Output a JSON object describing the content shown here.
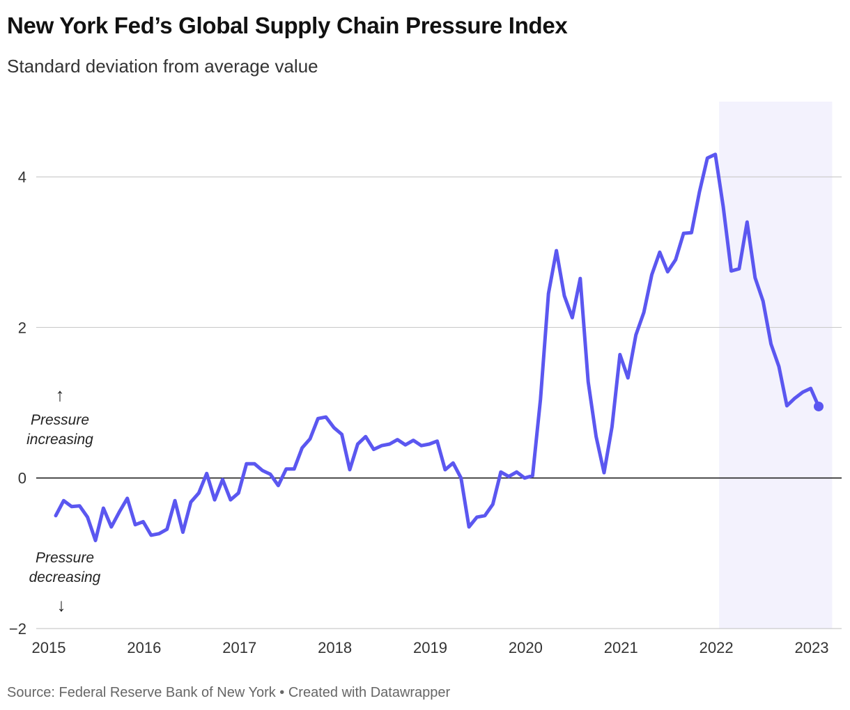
{
  "header": {
    "title": "New York Fed’s Global Supply Chain Pressure Index",
    "subtitle": "Standard deviation from average value"
  },
  "footer": {
    "source": "Source: Federal Reserve Bank of New York • Created with Datawrapper"
  },
  "annotations": {
    "up": {
      "arrow": "↑",
      "line1": "Pressure",
      "line2": "increasing"
    },
    "down": {
      "arrow": "↓",
      "line1": "Pressure",
      "line2": "decreasing"
    }
  },
  "colors": {
    "line": "#5b57f0",
    "highlight": "#f3f2fd",
    "grid": "#cccccc",
    "zero": "#222222"
  },
  "chart_data": {
    "type": "line",
    "title": "New York Fed’s Global Supply Chain Pressure Index",
    "subtitle": "Standard deviation from average value",
    "ylim": [
      -2,
      5
    ],
    "yticks": [
      -2,
      0,
      2,
      4
    ],
    "ytick_labels": [
      "−2",
      "0",
      "2",
      "4"
    ],
    "xlim": [
      "2015-01",
      "2023-03"
    ],
    "xticks": [
      "2015-01",
      "2016-01",
      "2017-01",
      "2018-01",
      "2019-01",
      "2020-01",
      "2021-01",
      "2022-01",
      "2023-01"
    ],
    "xtick_labels": [
      "2015",
      "2016",
      "2017",
      "2018",
      "2019",
      "2020",
      "2021",
      "2022",
      "2023"
    ],
    "grid": true,
    "highlight_range": [
      "2022-01",
      "2023-02"
    ],
    "last_point_marker": true,
    "series": [
      {
        "x_start": "2015-01",
        "frequency": "monthly",
        "values": [
          -0.5,
          -0.3,
          -0.38,
          -0.37,
          -0.52,
          -0.83,
          -0.4,
          -0.65,
          -0.45,
          -0.27,
          -0.62,
          -0.58,
          -0.76,
          -0.74,
          -0.68,
          -0.3,
          -0.72,
          -0.32,
          -0.2,
          0.06,
          -0.29,
          -0.02,
          -0.29,
          -0.2,
          0.19,
          0.19,
          0.1,
          0.05,
          -0.1,
          0.12,
          0.12,
          0.4,
          0.52,
          0.79,
          0.81,
          0.67,
          0.58,
          0.11,
          0.45,
          0.55,
          0.38,
          0.43,
          0.45,
          0.51,
          0.44,
          0.5,
          0.43,
          0.45,
          0.49,
          0.11,
          0.2,
          0.0,
          -0.65,
          -0.52,
          -0.5,
          -0.35,
          0.08,
          0.02,
          0.08,
          0.0,
          0.03,
          1.05,
          2.45,
          3.02,
          2.42,
          2.13,
          2.65,
          1.28,
          0.55,
          0.07,
          0.68,
          1.64,
          1.33,
          1.9,
          2.2,
          2.7,
          3.0,
          2.74,
          2.9,
          3.25,
          3.26,
          3.8,
          4.25,
          4.3,
          3.6,
          2.75,
          2.78,
          3.4,
          2.66,
          2.35,
          1.78,
          1.48,
          0.96,
          1.06,
          1.14,
          1.19,
          0.95
        ]
      }
    ]
  }
}
